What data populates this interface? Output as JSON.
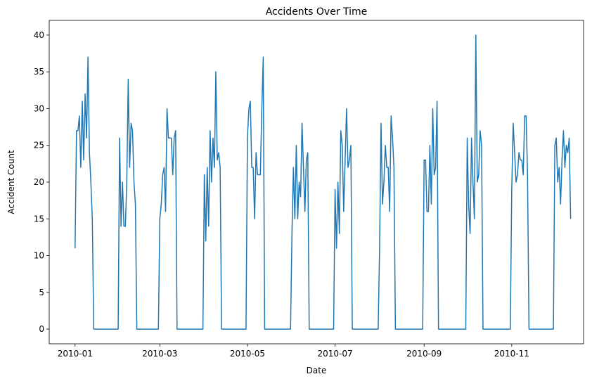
{
  "chart_data": {
    "type": "line",
    "title": "Accidents Over Time",
    "xlabel": "Date",
    "ylabel": "Accident Count",
    "ylim": [
      -2,
      42
    ],
    "xlim": [
      "2009-12-14",
      "2010-12-21"
    ],
    "grid": false,
    "x_ticks": [
      "2010-01",
      "2010-03",
      "2010-05",
      "2010-07",
      "2010-09",
      "2010-11"
    ],
    "y_ticks": [
      0,
      5,
      10,
      15,
      20,
      25,
      30,
      35,
      40
    ],
    "series": [
      {
        "color": "#1f77b4",
        "points": [
          [
            "2010-01-01",
            11
          ],
          [
            "2010-01-02",
            27
          ],
          [
            "2010-01-03",
            27
          ],
          [
            "2010-01-04",
            29
          ],
          [
            "2010-01-05",
            22
          ],
          [
            "2010-01-06",
            31
          ],
          [
            "2010-01-07",
            23
          ],
          [
            "2010-01-08",
            32
          ],
          [
            "2010-01-09",
            26
          ],
          [
            "2010-01-10",
            37
          ],
          [
            "2010-01-11",
            24
          ],
          [
            "2010-01-12",
            20
          ],
          [
            "2010-01-13",
            15
          ],
          [
            "2010-01-14",
            0
          ],
          [
            "2010-01-31",
            0
          ],
          [
            "2010-02-01",
            26
          ],
          [
            "2010-02-02",
            14
          ],
          [
            "2010-02-03",
            20
          ],
          [
            "2010-02-04",
            14
          ],
          [
            "2010-02-05",
            14
          ],
          [
            "2010-02-06",
            20
          ],
          [
            "2010-02-07",
            34
          ],
          [
            "2010-02-08",
            22
          ],
          [
            "2010-02-09",
            28
          ],
          [
            "2010-02-10",
            27
          ],
          [
            "2010-02-11",
            20
          ],
          [
            "2010-02-12",
            17
          ],
          [
            "2010-02-13",
            0
          ],
          [
            "2010-02-28",
            0
          ],
          [
            "2010-03-01",
            15
          ],
          [
            "2010-03-02",
            17
          ],
          [
            "2010-03-03",
            21
          ],
          [
            "2010-03-04",
            22
          ],
          [
            "2010-03-05",
            16
          ],
          [
            "2010-03-06",
            30
          ],
          [
            "2010-03-07",
            26
          ],
          [
            "2010-03-08",
            26
          ],
          [
            "2010-03-09",
            26
          ],
          [
            "2010-03-10",
            21
          ],
          [
            "2010-03-11",
            26
          ],
          [
            "2010-03-12",
            27
          ],
          [
            "2010-03-13",
            0
          ],
          [
            "2010-03-31",
            0
          ],
          [
            "2010-04-01",
            21
          ],
          [
            "2010-04-02",
            12
          ],
          [
            "2010-04-03",
            22
          ],
          [
            "2010-04-04",
            14
          ],
          [
            "2010-04-05",
            27
          ],
          [
            "2010-04-06",
            20
          ],
          [
            "2010-04-07",
            26
          ],
          [
            "2010-04-08",
            22
          ],
          [
            "2010-04-09",
            35
          ],
          [
            "2010-04-10",
            23
          ],
          [
            "2010-04-11",
            24
          ],
          [
            "2010-04-12",
            22
          ],
          [
            "2010-04-13",
            0
          ],
          [
            "2010-04-30",
            0
          ],
          [
            "2010-05-01",
            26
          ],
          [
            "2010-05-02",
            30
          ],
          [
            "2010-05-03",
            31
          ],
          [
            "2010-05-04",
            22
          ],
          [
            "2010-05-05",
            22
          ],
          [
            "2010-05-06",
            15
          ],
          [
            "2010-05-07",
            24
          ],
          [
            "2010-05-08",
            21
          ],
          [
            "2010-05-09",
            21
          ],
          [
            "2010-05-10",
            21
          ],
          [
            "2010-05-11",
            30
          ],
          [
            "2010-05-12",
            37
          ],
          [
            "2010-05-13",
            0
          ],
          [
            "2010-05-31",
            0
          ],
          [
            "2010-06-01",
            13
          ],
          [
            "2010-06-02",
            22
          ],
          [
            "2010-06-03",
            15
          ],
          [
            "2010-06-04",
            25
          ],
          [
            "2010-06-05",
            15
          ],
          [
            "2010-06-06",
            20
          ],
          [
            "2010-06-07",
            18
          ],
          [
            "2010-06-08",
            28
          ],
          [
            "2010-06-09",
            22
          ],
          [
            "2010-06-10",
            16
          ],
          [
            "2010-06-11",
            23
          ],
          [
            "2010-06-12",
            24
          ],
          [
            "2010-06-13",
            0
          ],
          [
            "2010-06-30",
            0
          ],
          [
            "2010-07-01",
            19
          ],
          [
            "2010-07-02",
            11
          ],
          [
            "2010-07-03",
            20
          ],
          [
            "2010-07-04",
            13
          ],
          [
            "2010-07-05",
            27
          ],
          [
            "2010-07-06",
            25
          ],
          [
            "2010-07-07",
            16
          ],
          [
            "2010-07-08",
            23
          ],
          [
            "2010-07-09",
            30
          ],
          [
            "2010-07-10",
            22
          ],
          [
            "2010-07-11",
            23
          ],
          [
            "2010-07-12",
            25
          ],
          [
            "2010-07-13",
            0
          ],
          [
            "2010-07-31",
            0
          ],
          [
            "2010-08-01",
            11
          ],
          [
            "2010-08-02",
            28
          ],
          [
            "2010-08-03",
            17
          ],
          [
            "2010-08-04",
            20
          ],
          [
            "2010-08-05",
            25
          ],
          [
            "2010-08-06",
            22
          ],
          [
            "2010-08-07",
            22
          ],
          [
            "2010-08-08",
            16
          ],
          [
            "2010-08-09",
            29
          ],
          [
            "2010-08-10",
            26
          ],
          [
            "2010-08-11",
            22
          ],
          [
            "2010-08-12",
            0
          ],
          [
            "2010-08-31",
            0
          ],
          [
            "2010-09-01",
            23
          ],
          [
            "2010-09-02",
            23
          ],
          [
            "2010-09-03",
            16
          ],
          [
            "2010-09-04",
            16
          ],
          [
            "2010-09-05",
            25
          ],
          [
            "2010-09-06",
            17
          ],
          [
            "2010-09-07",
            30
          ],
          [
            "2010-09-08",
            21
          ],
          [
            "2010-09-09",
            22
          ],
          [
            "2010-09-10",
            31
          ],
          [
            "2010-09-11",
            0
          ],
          [
            "2010-09-30",
            0
          ],
          [
            "2010-10-01",
            26
          ],
          [
            "2010-10-02",
            17
          ],
          [
            "2010-10-03",
            13
          ],
          [
            "2010-10-04",
            26
          ],
          [
            "2010-10-05",
            20
          ],
          [
            "2010-10-06",
            15
          ],
          [
            "2010-10-07",
            40
          ],
          [
            "2010-10-08",
            20
          ],
          [
            "2010-10-09",
            21
          ],
          [
            "2010-10-10",
            27
          ],
          [
            "2010-10-11",
            25
          ],
          [
            "2010-10-12",
            0
          ],
          [
            "2010-10-31",
            0
          ],
          [
            "2010-11-01",
            19
          ],
          [
            "2010-11-02",
            28
          ],
          [
            "2010-11-03",
            24
          ],
          [
            "2010-11-04",
            20
          ],
          [
            "2010-11-05",
            21
          ],
          [
            "2010-11-06",
            24
          ],
          [
            "2010-11-07",
            23
          ],
          [
            "2010-11-08",
            23
          ],
          [
            "2010-11-09",
            21
          ],
          [
            "2010-11-10",
            29
          ],
          [
            "2010-11-11",
            29
          ],
          [
            "2010-11-12",
            21
          ],
          [
            "2010-11-13",
            0
          ],
          [
            "2010-11-30",
            0
          ],
          [
            "2010-12-01",
            25
          ],
          [
            "2010-12-02",
            26
          ],
          [
            "2010-12-03",
            20
          ],
          [
            "2010-12-04",
            22
          ],
          [
            "2010-12-05",
            17
          ],
          [
            "2010-12-06",
            23
          ],
          [
            "2010-12-07",
            27
          ],
          [
            "2010-12-08",
            22
          ],
          [
            "2010-12-09",
            25
          ],
          [
            "2010-12-10",
            24
          ],
          [
            "2010-12-11",
            26
          ],
          [
            "2010-12-12",
            15
          ]
        ]
      }
    ]
  }
}
